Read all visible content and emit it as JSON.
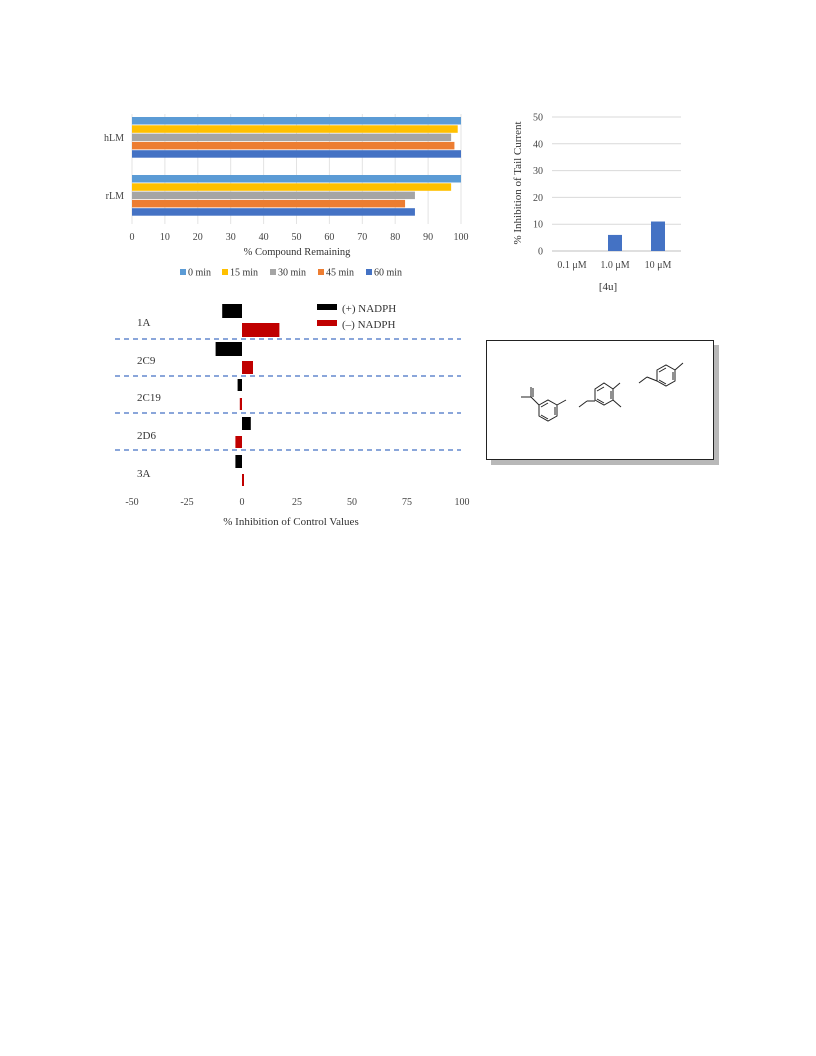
{
  "chart_data": [
    {
      "type": "bar",
      "orientation": "horizontal",
      "categories": [
        "hLM",
        "rLM"
      ],
      "series": [
        {
          "name": "0 min",
          "color": "#5b9bd5",
          "values": [
            100,
            100
          ]
        },
        {
          "name": "15 min",
          "color": "#ffc000",
          "values": [
            99,
            97
          ]
        },
        {
          "name": "30 min",
          "color": "#a5a5a5",
          "values": [
            97,
            86
          ]
        },
        {
          "name": "45 min",
          "color": "#ed7d31",
          "values": [
            98,
            83
          ]
        },
        {
          "name": "60 min",
          "color": "#4472c4",
          "values": [
            100,
            86
          ]
        }
      ],
      "xlabel": "% Compound Remaining",
      "xlim": [
        0,
        100
      ],
      "xticks": [
        "0",
        "10",
        "20",
        "30",
        "40",
        "50",
        "60",
        "70",
        "80",
        "90",
        "100"
      ],
      "legend": "bottom"
    },
    {
      "type": "bar",
      "categories": [
        "0.1 μM",
        "1.0 μM",
        "10 μM"
      ],
      "values": [
        0,
        6,
        11
      ],
      "color": "#4472c4",
      "ylabel": "% Inhibition of Tail Current",
      "xlabel": "[4u]",
      "ylim": [
        0,
        50
      ],
      "yticks": [
        "0",
        "10",
        "20",
        "30",
        "40",
        "50"
      ],
      "grid": true
    },
    {
      "type": "bar",
      "orientation": "horizontal",
      "categories": [
        "1A",
        "2C9",
        "2C19",
        "2D6",
        "3A"
      ],
      "series": [
        {
          "name": "(+) NADPH",
          "color": "#000000",
          "values": [
            -9,
            -12,
            -2,
            4,
            -3
          ]
        },
        {
          "name": "(–) NADPH",
          "color": "#c00000",
          "values": [
            17,
            5,
            -1,
            -3,
            0.5
          ]
        }
      ],
      "xlabel": "% Inhibition of Control Values",
      "xlim": [
        -50,
        100
      ],
      "xticks": [
        "-50",
        "-25",
        "0",
        "25",
        "50",
        "75",
        "100"
      ],
      "separators": "dashed",
      "legend": "top-right"
    }
  ],
  "structure_box": {
    "label": "chemical structure of compound 4u"
  }
}
